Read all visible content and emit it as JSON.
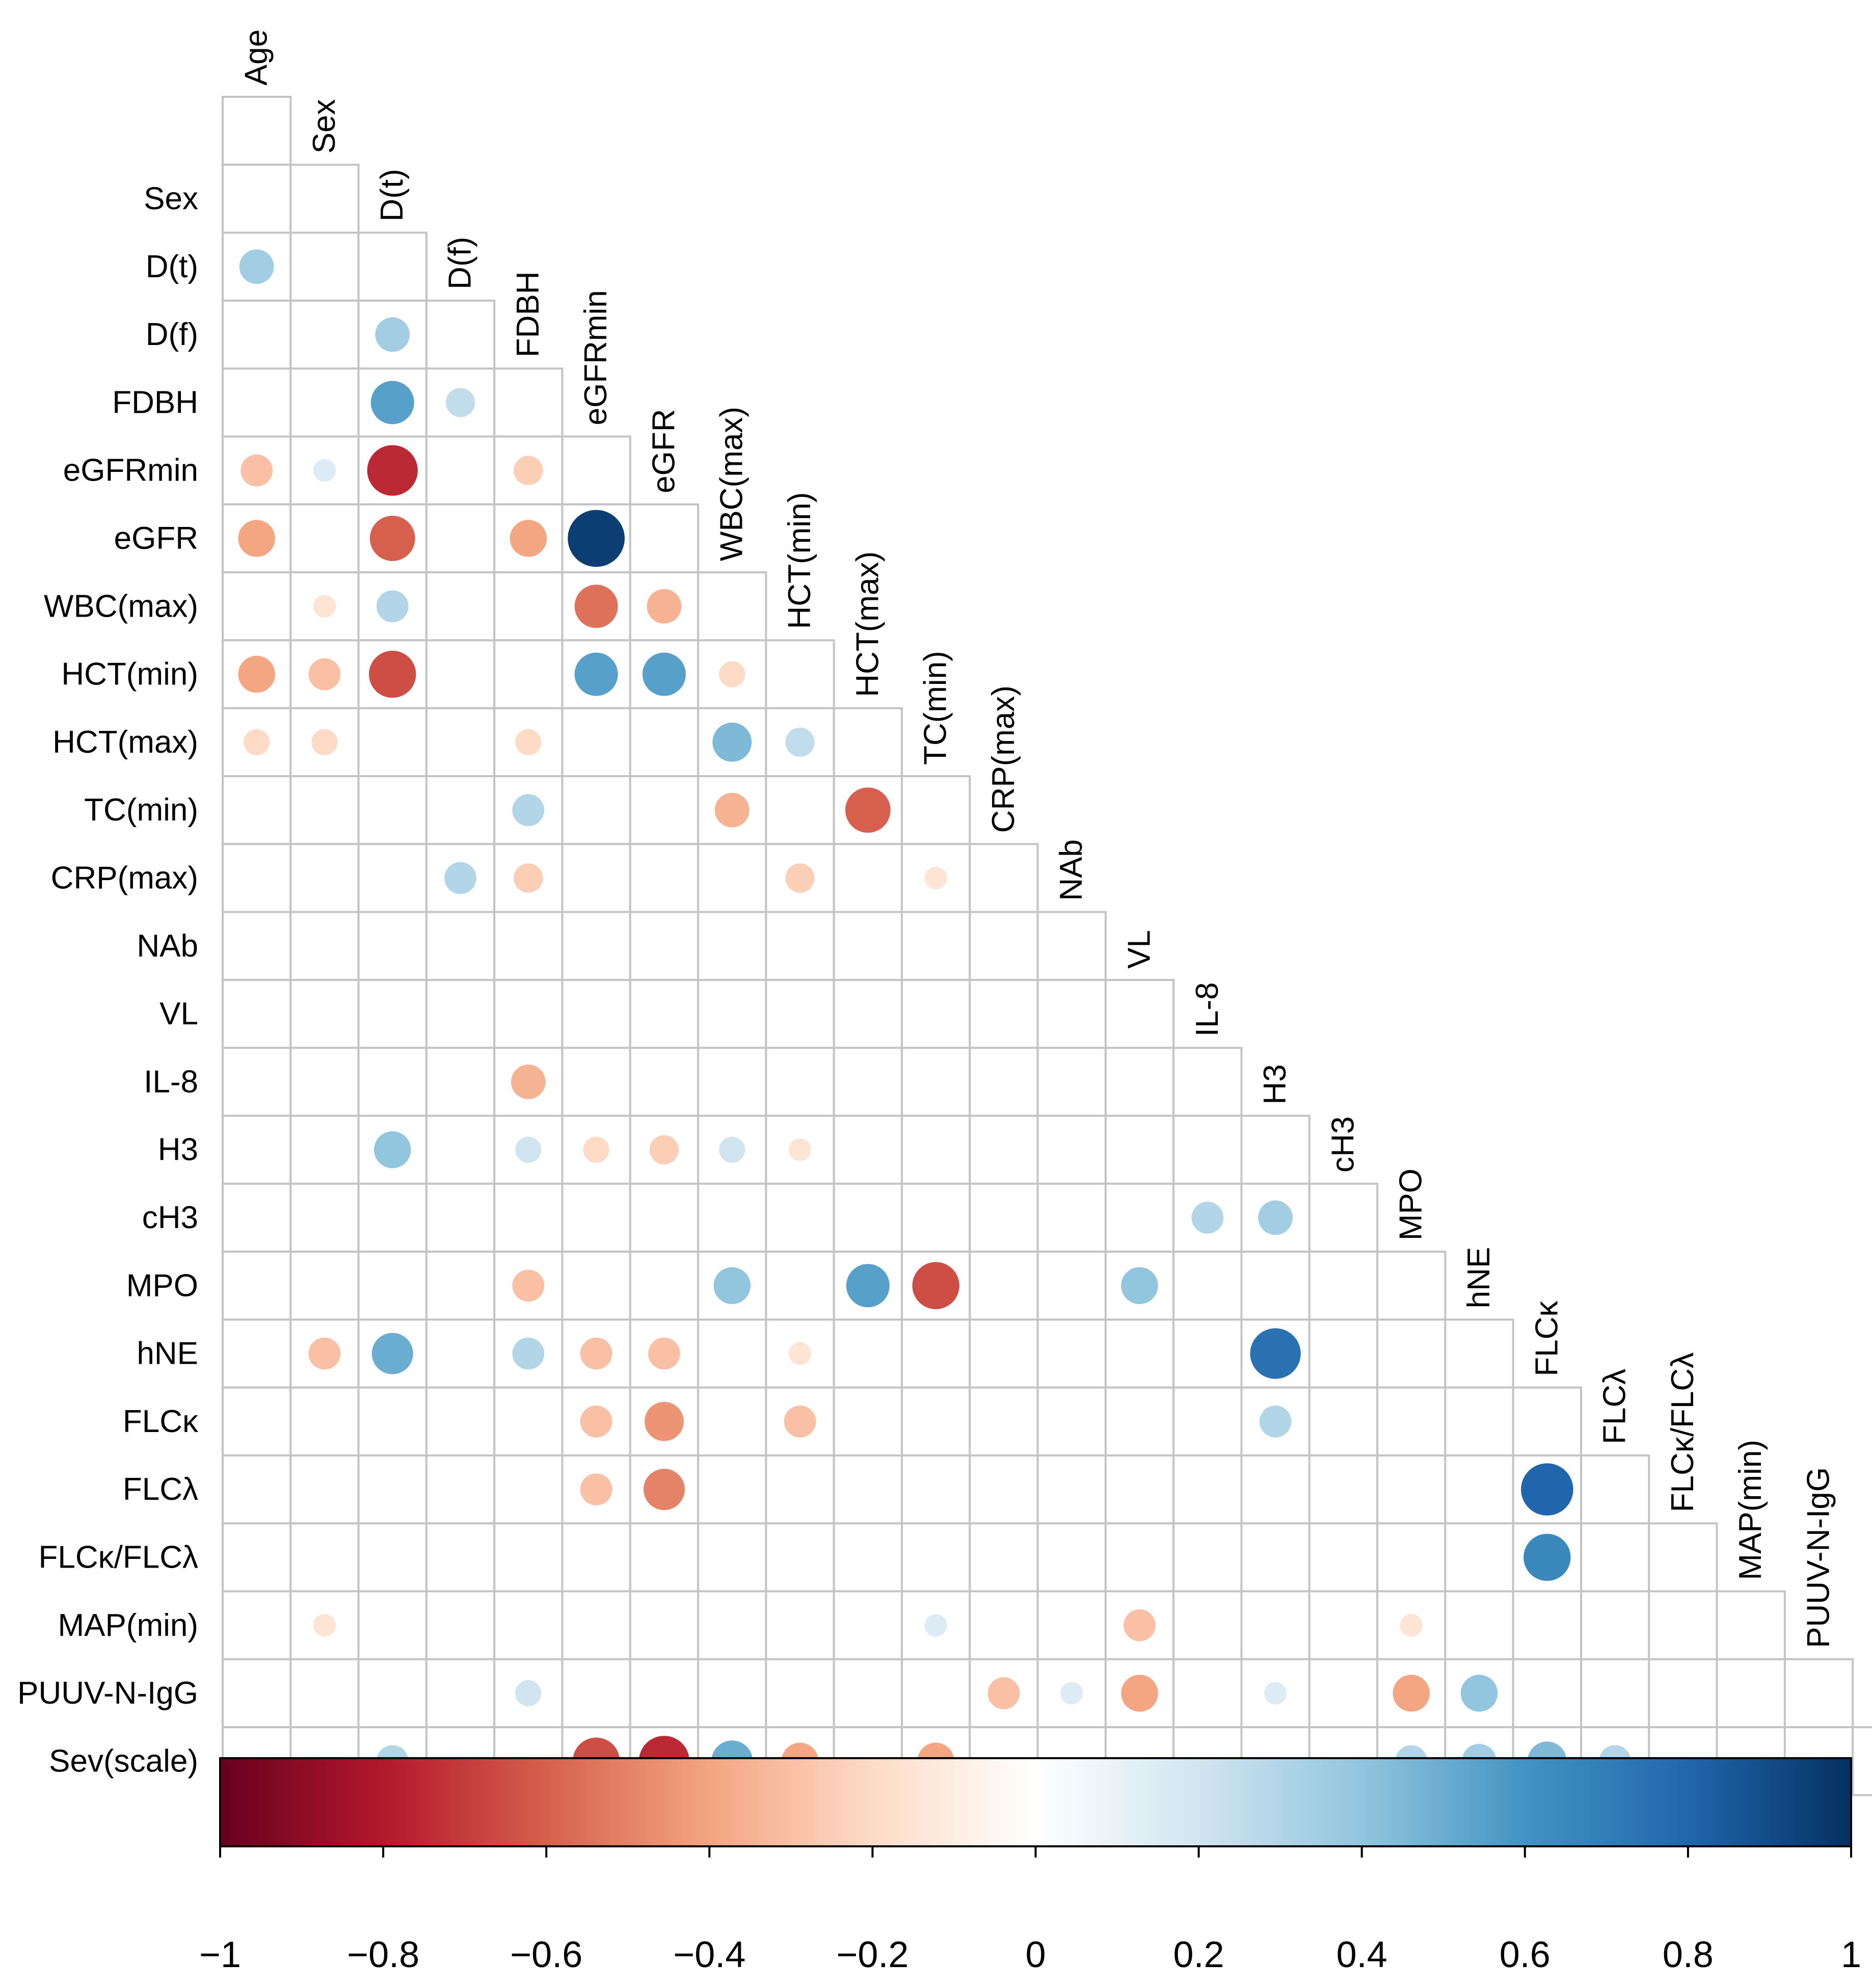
{
  "chart_data": {
    "type": "heatmap",
    "subtype": "correlation-lower-triangle",
    "title": "",
    "variables": [
      "Age",
      "Sex",
      "D(t)",
      "D(f)",
      "FDBH",
      "eGFRmin",
      "eGFR",
      "WBC(max)",
      "HCT(min)",
      "HCT(max)",
      "TC(min)",
      "CRP(max)",
      "NAb",
      "VL",
      "IL-8",
      "H3",
      "cH3",
      "MPO",
      "hNE",
      "FLCκ",
      "FLCλ",
      "FLCκ/FLCλ",
      "MAP(min)",
      "PUUV-N-IgG",
      "Sev(scale)"
    ],
    "correlations": [
      {
        "row": "D(t)",
        "col": "Age",
        "value": 0.35
      },
      {
        "row": "D(f)",
        "col": "D(t)",
        "value": 0.35
      },
      {
        "row": "FDBH",
        "col": "D(t)",
        "value": 0.55
      },
      {
        "row": "FDBH",
        "col": "D(f)",
        "value": 0.25
      },
      {
        "row": "eGFRmin",
        "col": "Age",
        "value": -0.3
      },
      {
        "row": "eGFRmin",
        "col": "Sex",
        "value": 0.15
      },
      {
        "row": "eGFRmin",
        "col": "D(t)",
        "value": -0.75
      },
      {
        "row": "eGFRmin",
        "col": "FDBH",
        "value": -0.25
      },
      {
        "row": "eGFR",
        "col": "Age",
        "value": -0.4
      },
      {
        "row": "eGFR",
        "col": "D(t)",
        "value": -0.6
      },
      {
        "row": "eGFR",
        "col": "FDBH",
        "value": -0.4
      },
      {
        "row": "eGFR",
        "col": "eGFRmin",
        "value": 0.95
      },
      {
        "row": "WBC(max)",
        "col": "Sex",
        "value": -0.15
      },
      {
        "row": "WBC(max)",
        "col": "D(t)",
        "value": 0.3
      },
      {
        "row": "WBC(max)",
        "col": "eGFRmin",
        "value": -0.55
      },
      {
        "row": "WBC(max)",
        "col": "eGFR",
        "value": -0.35
      },
      {
        "row": "HCT(min)",
        "col": "Age",
        "value": -0.4
      },
      {
        "row": "HCT(min)",
        "col": "Sex",
        "value": -0.3
      },
      {
        "row": "HCT(min)",
        "col": "D(t)",
        "value": -0.65
      },
      {
        "row": "HCT(min)",
        "col": "eGFRmin",
        "value": 0.55
      },
      {
        "row": "HCT(min)",
        "col": "eGFR",
        "value": 0.55
      },
      {
        "row": "HCT(min)",
        "col": "WBC(max)",
        "value": -0.2
      },
      {
        "row": "HCT(max)",
        "col": "Age",
        "value": -0.2
      },
      {
        "row": "HCT(max)",
        "col": "Sex",
        "value": -0.2
      },
      {
        "row": "HCT(max)",
        "col": "FDBH",
        "value": -0.2
      },
      {
        "row": "HCT(max)",
        "col": "WBC(max)",
        "value": 0.45
      },
      {
        "row": "HCT(max)",
        "col": "HCT(min)",
        "value": 0.25
      },
      {
        "row": "TC(min)",
        "col": "FDBH",
        "value": 0.3
      },
      {
        "row": "TC(min)",
        "col": "WBC(max)",
        "value": -0.35
      },
      {
        "row": "TC(min)",
        "col": "HCT(max)",
        "value": -0.6
      },
      {
        "row": "CRP(max)",
        "col": "D(f)",
        "value": 0.3
      },
      {
        "row": "CRP(max)",
        "col": "FDBH",
        "value": -0.25
      },
      {
        "row": "CRP(max)",
        "col": "HCT(min)",
        "value": -0.25
      },
      {
        "row": "CRP(max)",
        "col": "TC(min)",
        "value": -0.15
      },
      {
        "row": "IL-8",
        "col": "FDBH",
        "value": -0.35
      },
      {
        "row": "H3",
        "col": "D(t)",
        "value": 0.4
      },
      {
        "row": "H3",
        "col": "FDBH",
        "value": 0.2
      },
      {
        "row": "H3",
        "col": "eGFRmin",
        "value": -0.2
      },
      {
        "row": "H3",
        "col": "eGFR",
        "value": -0.25
      },
      {
        "row": "H3",
        "col": "WBC(max)",
        "value": 0.2
      },
      {
        "row": "H3",
        "col": "HCT(min)",
        "value": -0.15
      },
      {
        "row": "cH3",
        "col": "IL-8",
        "value": 0.3
      },
      {
        "row": "cH3",
        "col": "H3",
        "value": 0.35
      },
      {
        "row": "MPO",
        "col": "FDBH",
        "value": -0.3
      },
      {
        "row": "MPO",
        "col": "WBC(max)",
        "value": 0.4
      },
      {
        "row": "MPO",
        "col": "HCT(max)",
        "value": 0.55
      },
      {
        "row": "MPO",
        "col": "TC(min)",
        "value": -0.65
      },
      {
        "row": "MPO",
        "col": "VL",
        "value": 0.4
      },
      {
        "row": "hNE",
        "col": "Sex",
        "value": -0.3
      },
      {
        "row": "hNE",
        "col": "D(t)",
        "value": 0.5
      },
      {
        "row": "hNE",
        "col": "FDBH",
        "value": 0.3
      },
      {
        "row": "hNE",
        "col": "eGFRmin",
        "value": -0.3
      },
      {
        "row": "hNE",
        "col": "eGFR",
        "value": -0.3
      },
      {
        "row": "hNE",
        "col": "HCT(min)",
        "value": -0.15
      },
      {
        "row": "hNE",
        "col": "H3",
        "value": 0.75
      },
      {
        "row": "FLCκ",
        "col": "eGFRmin",
        "value": -0.3
      },
      {
        "row": "FLCκ",
        "col": "eGFR",
        "value": -0.45
      },
      {
        "row": "FLCκ",
        "col": "HCT(min)",
        "value": -0.3
      },
      {
        "row": "FLCκ",
        "col": "H3",
        "value": 0.3
      },
      {
        "row": "FLCλ",
        "col": "eGFRmin",
        "value": -0.3
      },
      {
        "row": "FLCλ",
        "col": "eGFR",
        "value": -0.5
      },
      {
        "row": "FLCλ",
        "col": "FLCκ",
        "value": 0.8
      },
      {
        "row": "FLCκ/FLCλ",
        "col": "FLCκ",
        "value": 0.65
      },
      {
        "row": "MAP(min)",
        "col": "Sex",
        "value": -0.15
      },
      {
        "row": "MAP(min)",
        "col": "TC(min)",
        "value": 0.15
      },
      {
        "row": "MAP(min)",
        "col": "VL",
        "value": -0.3
      },
      {
        "row": "MAP(min)",
        "col": "MPO",
        "value": -0.15
      },
      {
        "row": "PUUV-N-IgG",
        "col": "FDBH",
        "value": 0.2
      },
      {
        "row": "PUUV-N-IgG",
        "col": "CRP(max)",
        "value": -0.3
      },
      {
        "row": "PUUV-N-IgG",
        "col": "NAb",
        "value": 0.15
      },
      {
        "row": "PUUV-N-IgG",
        "col": "VL",
        "value": -0.4
      },
      {
        "row": "PUUV-N-IgG",
        "col": "H3",
        "value": 0.15
      },
      {
        "row": "PUUV-N-IgG",
        "col": "MPO",
        "value": -0.4
      },
      {
        "row": "PUUV-N-IgG",
        "col": "hNE",
        "value": 0.4
      },
      {
        "row": "Sev(scale)",
        "col": "D(t)",
        "value": 0.3
      },
      {
        "row": "Sev(scale)",
        "col": "eGFRmin",
        "value": -0.65
      },
      {
        "row": "Sev(scale)",
        "col": "eGFR",
        "value": -0.75
      },
      {
        "row": "Sev(scale)",
        "col": "WBC(max)",
        "value": 0.5
      },
      {
        "row": "Sev(scale)",
        "col": "HCT(min)",
        "value": -0.4
      },
      {
        "row": "Sev(scale)",
        "col": "TC(min)",
        "value": -0.4
      },
      {
        "row": "Sev(scale)",
        "col": "MPO",
        "value": 0.3
      },
      {
        "row": "Sev(scale)",
        "col": "hNE",
        "value": 0.35
      },
      {
        "row": "Sev(scale)",
        "col": "FLCκ",
        "value": 0.45
      },
      {
        "row": "Sev(scale)",
        "col": "FLCλ",
        "value": 0.3
      }
    ],
    "colorbar": {
      "range": [
        -1,
        1
      ],
      "ticks": [
        -1,
        -0.8,
        -0.6,
        -0.4,
        -0.2,
        0,
        0.2,
        0.4,
        0.6,
        0.8,
        1
      ],
      "tick_labels": [
        "−1",
        "−0.8",
        "−0.6",
        "−0.4",
        "−0.2",
        "0",
        "0.2",
        "0.4",
        "0.6",
        "0.8",
        "1"
      ],
      "colors": [
        "#67001f",
        "#b2182b",
        "#d6604d",
        "#f4a582",
        "#fddbc7",
        "#ffffff",
        "#d1e5f0",
        "#92c5de",
        "#4393c3",
        "#2166ac",
        "#053061"
      ]
    }
  }
}
